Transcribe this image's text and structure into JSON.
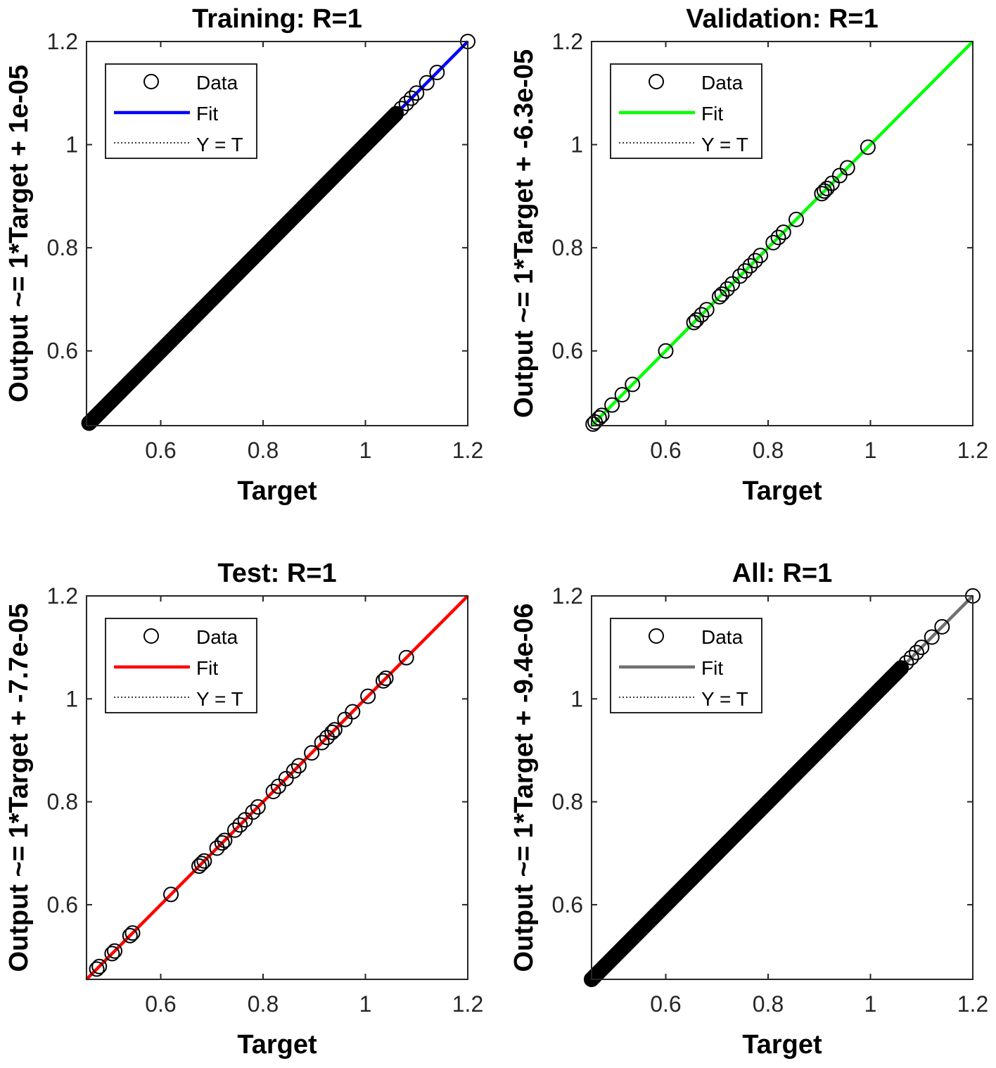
{
  "chart_data": [
    {
      "type": "scatter",
      "title": "Training: R=1",
      "xlabel": "Target",
      "ylabel": "Output ~= 1*Target + 1e-05",
      "xlim": [
        0.455,
        1.2
      ],
      "ylim": [
        0.455,
        1.2
      ],
      "xticks": [
        "0.6",
        "0.8",
        "1",
        "1.2"
      ],
      "yticks": [
        "0.6",
        "0.8",
        "1",
        "1.2"
      ],
      "fit_color": "#0000ff",
      "legend": [
        "Data",
        "Fit",
        "Y = T"
      ],
      "legend_position": "top-left",
      "dense_line": [
        0.46,
        1.06
      ],
      "x": [
        0.46,
        0.47,
        0.48,
        0.5,
        0.52,
        0.54,
        0.56,
        0.58,
        0.6,
        0.61,
        0.62,
        0.63,
        0.65,
        0.68,
        0.7,
        0.72,
        0.75,
        0.78,
        0.8,
        0.82,
        0.85,
        0.88,
        0.9,
        0.92,
        0.95,
        0.98,
        1.0,
        1.02,
        1.04,
        1.06,
        1.07,
        1.08,
        1.09,
        1.1,
        1.12,
        1.14,
        1.2
      ],
      "y": [
        0.46,
        0.47,
        0.48,
        0.5,
        0.52,
        0.54,
        0.56,
        0.58,
        0.6,
        0.61,
        0.62,
        0.63,
        0.65,
        0.68,
        0.7,
        0.72,
        0.75,
        0.78,
        0.8,
        0.82,
        0.85,
        0.88,
        0.9,
        0.92,
        0.95,
        0.98,
        1.0,
        1.02,
        1.04,
        1.06,
        1.07,
        1.08,
        1.09,
        1.1,
        1.12,
        1.14,
        1.2
      ]
    },
    {
      "type": "scatter",
      "title": "Validation: R=1",
      "xlabel": "Target",
      "ylabel": "Output ~= 1*Target + -6.3e-05",
      "xlim": [
        0.455,
        1.2
      ],
      "ylim": [
        0.455,
        1.2
      ],
      "xticks": [
        "0.6",
        "0.8",
        "1",
        "1.2"
      ],
      "yticks": [
        "0.6",
        "0.8",
        "1",
        "1.2"
      ],
      "fit_color": "#00ff00",
      "legend": [
        "Data",
        "Fit",
        "Y = T"
      ],
      "legend_position": "top-left",
      "dense_line": null,
      "x": [
        0.458,
        0.462,
        0.47,
        0.475,
        0.495,
        0.515,
        0.535,
        0.6,
        0.655,
        0.66,
        0.67,
        0.68,
        0.705,
        0.71,
        0.72,
        0.73,
        0.745,
        0.755,
        0.765,
        0.775,
        0.785,
        0.81,
        0.82,
        0.83,
        0.855,
        0.905,
        0.91,
        0.915,
        0.925,
        0.94,
        0.955,
        0.995
      ],
      "y": [
        0.458,
        0.462,
        0.47,
        0.475,
        0.495,
        0.515,
        0.535,
        0.6,
        0.655,
        0.66,
        0.67,
        0.68,
        0.705,
        0.71,
        0.72,
        0.73,
        0.745,
        0.755,
        0.765,
        0.775,
        0.785,
        0.81,
        0.82,
        0.83,
        0.855,
        0.905,
        0.91,
        0.915,
        0.925,
        0.94,
        0.955,
        0.995
      ]
    },
    {
      "type": "scatter",
      "title": "Test: R=1",
      "xlabel": "Target",
      "ylabel": "Output ~= 1*Target + -7.7e-05",
      "xlim": [
        0.455,
        1.2
      ],
      "ylim": [
        0.455,
        1.2
      ],
      "xticks": [
        "0.6",
        "0.8",
        "1",
        "1.2"
      ],
      "yticks": [
        "0.6",
        "0.8",
        "1",
        "1.2"
      ],
      "fit_color": "#ff0000",
      "legend": [
        "Data",
        "Fit",
        "Y = T"
      ],
      "legend_position": "top-left",
      "dense_line": null,
      "x": [
        0.475,
        0.48,
        0.505,
        0.51,
        0.54,
        0.545,
        0.62,
        0.675,
        0.68,
        0.685,
        0.71,
        0.72,
        0.725,
        0.745,
        0.755,
        0.765,
        0.78,
        0.79,
        0.82,
        0.83,
        0.845,
        0.86,
        0.87,
        0.895,
        0.915,
        0.925,
        0.935,
        0.94,
        0.96,
        0.975,
        1.005,
        1.035,
        1.04,
        1.08
      ],
      "y": [
        0.475,
        0.48,
        0.505,
        0.51,
        0.54,
        0.545,
        0.62,
        0.675,
        0.68,
        0.685,
        0.71,
        0.72,
        0.725,
        0.745,
        0.755,
        0.765,
        0.78,
        0.79,
        0.82,
        0.83,
        0.845,
        0.86,
        0.87,
        0.895,
        0.915,
        0.925,
        0.935,
        0.94,
        0.96,
        0.975,
        1.005,
        1.035,
        1.04,
        1.08
      ]
    },
    {
      "type": "scatter",
      "title": "All: R=1",
      "xlabel": "Target",
      "ylabel": "Output ~= 1*Target + -9.4e-06",
      "xlim": [
        0.455,
        1.2
      ],
      "ylim": [
        0.455,
        1.2
      ],
      "xticks": [
        "0.6",
        "0.8",
        "1",
        "1.2"
      ],
      "yticks": [
        "0.6",
        "0.8",
        "1",
        "1.2"
      ],
      "fit_color": "#707070",
      "legend": [
        "Data",
        "Fit",
        "Y = T"
      ],
      "legend_position": "top-left",
      "dense_line": [
        0.455,
        1.06
      ],
      "x": [
        0.455,
        0.46,
        0.47,
        0.48,
        0.5,
        0.52,
        0.55,
        0.58,
        0.6,
        0.62,
        0.65,
        0.68,
        0.7,
        0.72,
        0.75,
        0.78,
        0.8,
        0.82,
        0.85,
        0.88,
        0.9,
        0.92,
        0.95,
        0.98,
        1.0,
        1.02,
        1.04,
        1.06,
        1.07,
        1.08,
        1.09,
        1.1,
        1.12,
        1.14,
        1.2
      ],
      "y": [
        0.455,
        0.46,
        0.47,
        0.48,
        0.5,
        0.52,
        0.55,
        0.58,
        0.6,
        0.62,
        0.65,
        0.68,
        0.7,
        0.72,
        0.75,
        0.78,
        0.8,
        0.82,
        0.85,
        0.88,
        0.9,
        0.92,
        0.95,
        0.98,
        1.0,
        1.02,
        1.04,
        1.06,
        1.07,
        1.08,
        1.09,
        1.1,
        1.12,
        1.14,
        1.2
      ]
    }
  ]
}
